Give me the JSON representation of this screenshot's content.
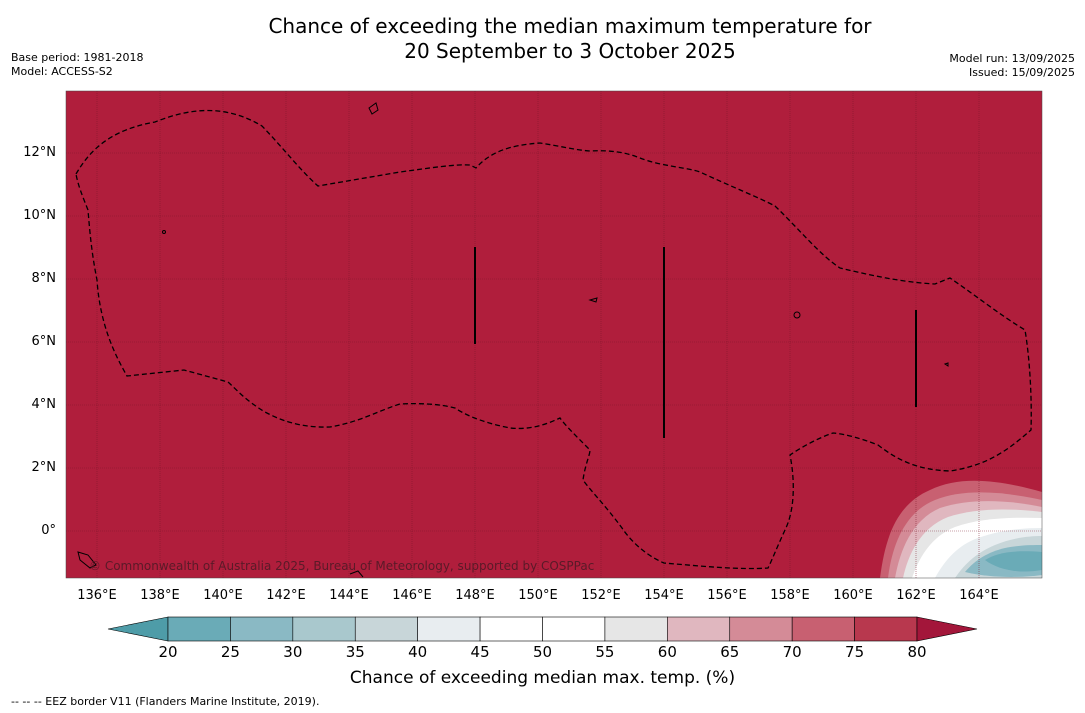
{
  "title": {
    "line1": "Chance of exceeding the median maximum temperature for",
    "line2": "20 September to 3 October 2025"
  },
  "meta_left": {
    "base_period": "Base period: 1981-2018",
    "model": "Model: ACCESS-S2"
  },
  "meta_right": {
    "model_run": "Model run: 13/09/2025",
    "issued": "Issued: 15/09/2025"
  },
  "map": {
    "background_color": "#b01e3c",
    "longitude_labels": [
      "136°E",
      "138°E",
      "140°E",
      "142°E",
      "144°E",
      "146°E",
      "148°E",
      "150°E",
      "152°E",
      "154°E",
      "156°E",
      "158°E",
      "160°E",
      "162°E",
      "164°E"
    ],
    "latitude_labels": [
      "12°N",
      "10°N",
      "8°N",
      "6°N",
      "4°N",
      "2°N",
      "0°"
    ],
    "credit": "© Commonwealth of Australia 2025, Bureau of Meteorology, supported by COSPPac"
  },
  "colorbar": {
    "ticks": [
      "20",
      "25",
      "30",
      "35",
      "40",
      "45",
      "50",
      "55",
      "60",
      "65",
      "70",
      "75",
      "80"
    ],
    "colors": [
      "#4e9ca8",
      "#6aabb7",
      "#8ab9c4",
      "#a9c8cd",
      "#c8d6d9",
      "#e8edf0",
      "#ffffff",
      "#ffffff",
      "#e6e6e6",
      "#e0b7bf",
      "#d48b97",
      "#c86071",
      "#b8384e",
      "#a3163a"
    ],
    "title": "Chance of exceeding median max. temp. (%)"
  },
  "footnote": "--  --  -- EEZ border V11 (Flanders Marine Institute, 2019)."
}
